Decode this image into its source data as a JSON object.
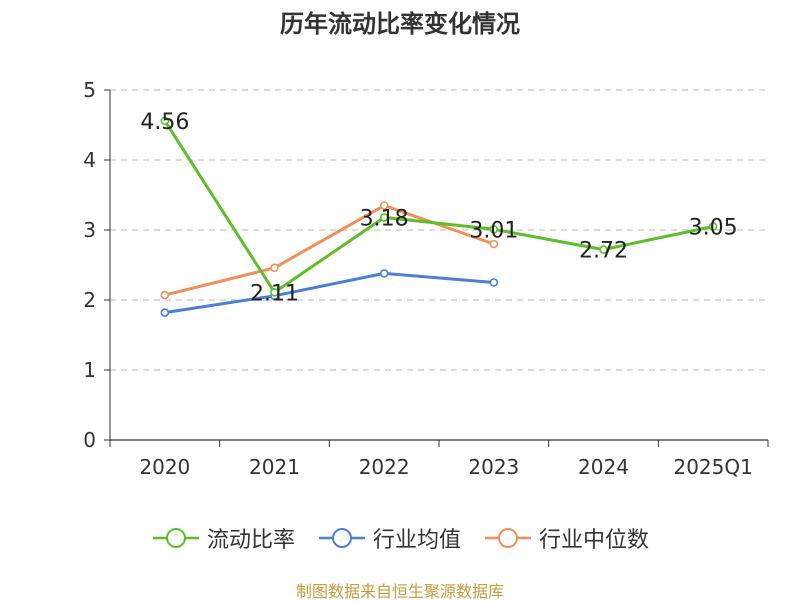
{
  "chart_data": {
    "type": "line",
    "title": "历年流动比率变化情况",
    "categories": [
      "2020",
      "2021",
      "2022",
      "2023",
      "2024",
      "2025Q1"
    ],
    "ylim": [
      0,
      5
    ],
    "yticks": [
      "0",
      "1",
      "2",
      "3",
      "4",
      "5"
    ],
    "grid": true,
    "legend_position": "bottom",
    "series": [
      {
        "name": "流动比率",
        "color": "#5dbe2a",
        "values": [
          4.56,
          2.11,
          3.18,
          3.01,
          2.72,
          3.05
        ],
        "labels": [
          "4.56",
          "2.11",
          "3.18",
          "3.01",
          "2.72",
          "3.05"
        ]
      },
      {
        "name": "行业均值",
        "color": "#4a7fda",
        "values": [
          1.82,
          2.06,
          2.38,
          2.25,
          null,
          null
        ]
      },
      {
        "name": "行业中位数",
        "color": "#f28e5a",
        "values": [
          2.07,
          2.46,
          3.35,
          2.8,
          null,
          null
        ]
      }
    ]
  },
  "source": "制图数据来自恒生聚源数据库"
}
